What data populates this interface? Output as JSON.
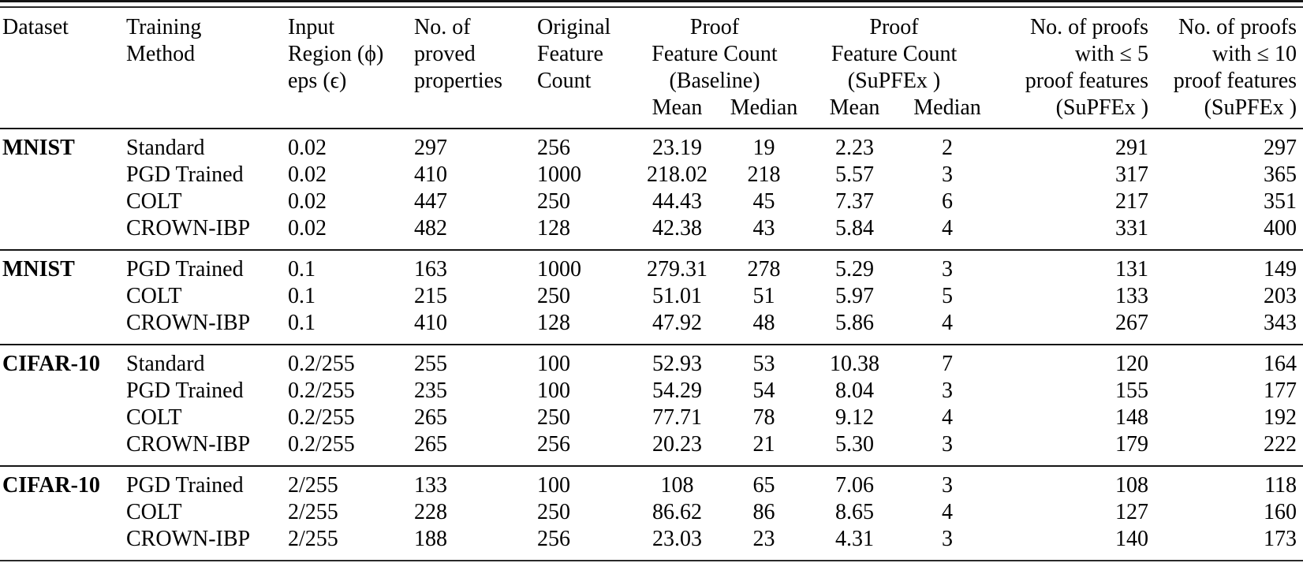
{
  "table": {
    "header": {
      "dataset": "Dataset",
      "training_method": [
        "Training",
        "Method"
      ],
      "input_region": [
        "Input",
        "Region (ϕ)",
        "eps (ϵ)"
      ],
      "proved": [
        "No. of",
        "proved",
        "properties"
      ],
      "original": [
        "Original",
        "Feature",
        "Count"
      ],
      "baseline_group": [
        "Proof",
        "Feature Count",
        "(Baseline)"
      ],
      "supfex_group": [
        "Proof",
        "Feature Count",
        "(SuPFEx )"
      ],
      "le5": [
        "No. of proofs",
        "with ≤ 5",
        "proof features",
        "(SuPFEx )"
      ],
      "le10": [
        "No. of proofs",
        "with ≤ 10",
        "proof features",
        "(SuPFEx )"
      ],
      "sub": {
        "mean": "Mean",
        "median": "Median"
      }
    },
    "groups": [
      {
        "dataset": "MNIST",
        "rows": [
          [
            "Standard",
            "0.02",
            "297",
            "256",
            "23.19",
            "19",
            "2.23",
            "2",
            "291",
            "297"
          ],
          [
            "PGD Trained",
            "0.02",
            "410",
            "1000",
            "218.02",
            "218",
            "5.57",
            "3",
            "317",
            "365"
          ],
          [
            "COLT",
            "0.02",
            "447",
            "250",
            "44.43",
            "45",
            "7.37",
            "6",
            "217",
            "351"
          ],
          [
            "CROWN-IBP",
            "0.02",
            "482",
            "128",
            "42.38",
            "43",
            "5.84",
            "4",
            "331",
            "400"
          ]
        ]
      },
      {
        "dataset": "MNIST",
        "rows": [
          [
            "PGD Trained",
            "0.1",
            "163",
            "1000",
            "279.31",
            "278",
            "5.29",
            "3",
            "131",
            "149"
          ],
          [
            "COLT",
            "0.1",
            "215",
            "250",
            "51.01",
            "51",
            "5.97",
            "5",
            "133",
            "203"
          ],
          [
            "CROWN-IBP",
            "0.1",
            "410",
            "128",
            "47.92",
            "48",
            "5.86",
            "4",
            "267",
            "343"
          ]
        ]
      },
      {
        "dataset": "CIFAR-10",
        "rows": [
          [
            "Standard",
            "0.2/255",
            "255",
            "100",
            "52.93",
            "53",
            "10.38",
            "7",
            "120",
            "164"
          ],
          [
            "PGD Trained",
            "0.2/255",
            "235",
            "100",
            "54.29",
            "54",
            "8.04",
            "3",
            "155",
            "177"
          ],
          [
            "COLT",
            "0.2/255",
            "265",
            "250",
            "77.71",
            "78",
            "9.12",
            "4",
            "148",
            "192"
          ],
          [
            "CROWN-IBP",
            "0.2/255",
            "265",
            "256",
            "20.23",
            "21",
            "5.30",
            "3",
            "179",
            "222"
          ]
        ]
      },
      {
        "dataset": "CIFAR-10",
        "rows": [
          [
            "PGD Trained",
            "2/255",
            "133",
            "100",
            "108",
            "65",
            "7.06",
            "3",
            "108",
            "118"
          ],
          [
            "COLT",
            "2/255",
            "228",
            "250",
            "86.62",
            "86",
            "8.65",
            "4",
            "127",
            "160"
          ],
          [
            "CROWN-IBP",
            "2/255",
            "188",
            "256",
            "23.03",
            "23",
            "4.31",
            "3",
            "140",
            "173"
          ]
        ]
      }
    ]
  }
}
